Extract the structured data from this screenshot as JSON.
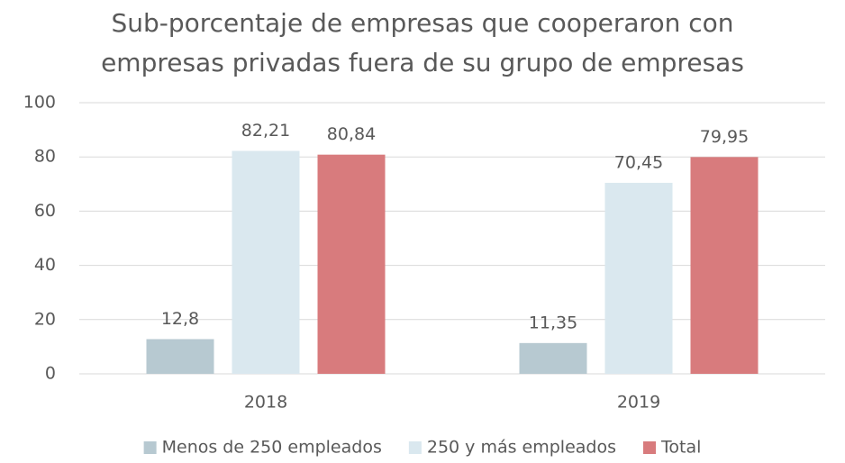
{
  "chart_data": {
    "type": "bar",
    "title": "Sub-porcentaje de empresas que cooperaron con empresas privadas fuera de su grupo de empresas",
    "categories": [
      "2018",
      "2019"
    ],
    "series": [
      {
        "name": "Menos de 250 empleados",
        "color": "#b7c9d1",
        "values": [
          12.8,
          11.35
        ],
        "value_labels": [
          "12,8",
          "11,35"
        ]
      },
      {
        "name": "250 y más empleados",
        "color": "#dae8ef",
        "values": [
          82.21,
          70.45
        ],
        "value_labels": [
          "82,21",
          "70,45"
        ]
      },
      {
        "name": "Total",
        "color": "#d87b7d",
        "values": [
          80.84,
          79.95
        ],
        "value_labels": [
          "80,84",
          "79,95"
        ]
      }
    ],
    "ylim": [
      0,
      100
    ],
    "yticks": [
      0,
      20,
      40,
      60,
      80,
      100
    ],
    "grid": true,
    "legend": "bottom"
  }
}
